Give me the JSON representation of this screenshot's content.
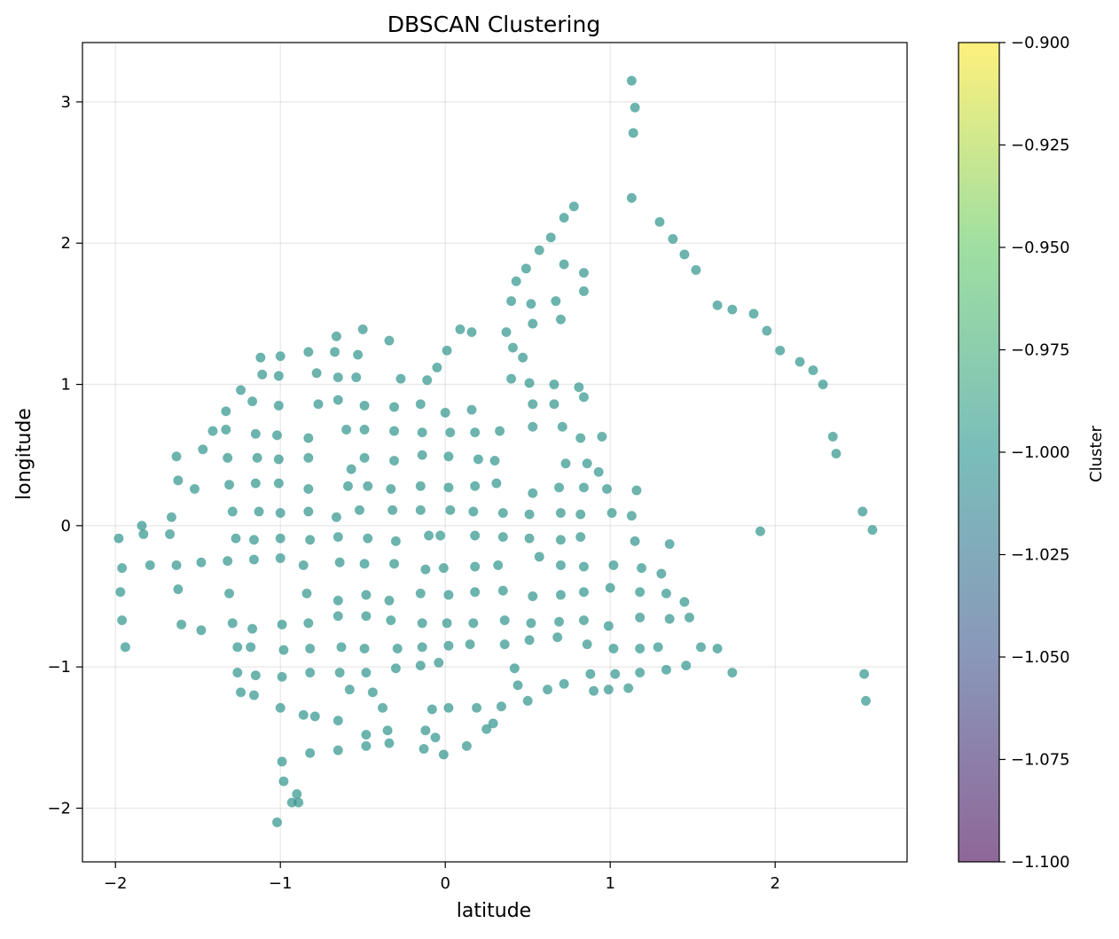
{
  "chart_data": {
    "type": "scatter",
    "title": "DBSCAN Clustering",
    "xlabel": "latitude",
    "ylabel": "longitude",
    "xlim": [
      -2.2,
      2.8
    ],
    "ylim": [
      -2.38,
      3.42
    ],
    "xticks": [
      -2,
      -1,
      0,
      1,
      2
    ],
    "xtick_labels": [
      "−2",
      "−1",
      "0",
      "1",
      "2"
    ],
    "yticks": [
      -2,
      -1,
      0,
      1,
      2,
      3
    ],
    "ytick_labels": [
      "−2",
      "−1",
      "0",
      "1",
      "2",
      "3"
    ],
    "grid": true,
    "point_color": "#35978f",
    "colorbar": {
      "label": "Cluster",
      "range": [
        -1.1,
        -0.9
      ],
      "ticks": [
        -0.9,
        -0.925,
        -0.95,
        -0.975,
        -1.0,
        -1.025,
        -1.05,
        -1.075,
        -1.1
      ],
      "tick_labels": [
        "−0.900",
        "−0.925",
        "−0.950",
        "−0.975",
        "−1.000",
        "−1.025",
        "−1.050",
        "−1.075",
        "−1.100"
      ],
      "colors": [
        "#440154",
        "#3b528b",
        "#21918c",
        "#5ec962",
        "#fde725"
      ]
    },
    "series": [
      {
        "cluster": -1,
        "points": [
          [
            1.13,
            3.15
          ],
          [
            1.15,
            2.96
          ],
          [
            1.14,
            2.78
          ],
          [
            1.13,
            2.32
          ],
          [
            0.78,
            2.26
          ],
          [
            0.72,
            2.18
          ],
          [
            0.64,
            2.04
          ],
          [
            0.57,
            1.95
          ],
          [
            0.49,
            1.82
          ],
          [
            0.43,
            1.73
          ],
          [
            0.72,
            1.85
          ],
          [
            0.84,
            1.79
          ],
          [
            0.84,
            1.66
          ],
          [
            0.67,
            1.59
          ],
          [
            0.4,
            1.59
          ],
          [
            0.52,
            1.57
          ],
          [
            0.7,
            1.46
          ],
          [
            0.53,
            1.43
          ],
          [
            0.37,
            1.37
          ],
          [
            0.41,
            1.26
          ],
          [
            0.47,
            1.19
          ],
          [
            1.3,
            2.15
          ],
          [
            1.38,
            2.03
          ],
          [
            1.45,
            1.92
          ],
          [
            1.52,
            1.81
          ],
          [
            1.65,
            1.56
          ],
          [
            1.74,
            1.53
          ],
          [
            1.87,
            1.5
          ],
          [
            1.95,
            1.38
          ],
          [
            2.03,
            1.24
          ],
          [
            2.15,
            1.16
          ],
          [
            2.23,
            1.1
          ],
          [
            2.29,
            1.0
          ],
          [
            2.35,
            0.63
          ],
          [
            2.37,
            0.51
          ],
          [
            2.53,
            0.1
          ],
          [
            2.59,
            -0.03
          ],
          [
            1.91,
            -0.04
          ],
          [
            2.54,
            -1.05
          ],
          [
            2.55,
            -1.24
          ],
          [
            0.09,
            1.39
          ],
          [
            0.16,
            1.37
          ],
          [
            0.01,
            1.24
          ],
          [
            -0.05,
            1.12
          ],
          [
            -0.11,
            1.03
          ],
          [
            -0.27,
            1.04
          ],
          [
            -0.5,
            1.39
          ],
          [
            -0.34,
            1.31
          ],
          [
            -0.66,
            1.34
          ],
          [
            -0.53,
            1.21
          ],
          [
            -0.67,
            1.23
          ],
          [
            -0.83,
            1.23
          ],
          [
            -1.0,
            1.2
          ],
          [
            -1.12,
            1.19
          ],
          [
            -1.11,
            1.07
          ],
          [
            -1.01,
            1.06
          ],
          [
            -0.78,
            1.08
          ],
          [
            -0.65,
            1.05
          ],
          [
            -0.54,
            1.05
          ],
          [
            -1.24,
            0.96
          ],
          [
            -1.17,
            0.88
          ],
          [
            -1.01,
            0.85
          ],
          [
            -0.77,
            0.86
          ],
          [
            -0.65,
            0.89
          ],
          [
            -0.49,
            0.85
          ],
          [
            -0.31,
            0.84
          ],
          [
            -0.15,
            0.86
          ],
          [
            0.0,
            0.8
          ],
          [
            0.16,
            0.82
          ],
          [
            0.4,
            1.04
          ],
          [
            0.51,
            1.01
          ],
          [
            0.66,
            1.0
          ],
          [
            0.81,
            0.98
          ],
          [
            0.84,
            0.91
          ],
          [
            0.53,
            0.86
          ],
          [
            0.66,
            0.86
          ],
          [
            -1.33,
            0.81
          ],
          [
            -1.41,
            0.67
          ],
          [
            -1.33,
            0.68
          ],
          [
            -1.15,
            0.65
          ],
          [
            -1.02,
            0.64
          ],
          [
            -0.83,
            0.62
          ],
          [
            -0.6,
            0.68
          ],
          [
            -0.49,
            0.68
          ],
          [
            -0.31,
            0.67
          ],
          [
            -0.14,
            0.66
          ],
          [
            0.03,
            0.66
          ],
          [
            0.18,
            0.66
          ],
          [
            0.33,
            0.67
          ],
          [
            0.53,
            0.7
          ],
          [
            0.71,
            0.7
          ],
          [
            0.82,
            0.62
          ],
          [
            0.95,
            0.63
          ],
          [
            -1.63,
            0.49
          ],
          [
            -1.47,
            0.54
          ],
          [
            -1.32,
            0.48
          ],
          [
            -1.14,
            0.48
          ],
          [
            -1.01,
            0.47
          ],
          [
            -0.83,
            0.48
          ],
          [
            -0.57,
            0.4
          ],
          [
            -0.49,
            0.48
          ],
          [
            -0.31,
            0.46
          ],
          [
            -0.14,
            0.5
          ],
          [
            0.02,
            0.49
          ],
          [
            0.2,
            0.47
          ],
          [
            0.3,
            0.46
          ],
          [
            0.73,
            0.44
          ],
          [
            0.86,
            0.44
          ],
          [
            0.93,
            0.38
          ],
          [
            -1.62,
            0.32
          ],
          [
            -1.52,
            0.26
          ],
          [
            -1.31,
            0.29
          ],
          [
            -1.15,
            0.3
          ],
          [
            -1.01,
            0.3
          ],
          [
            -0.83,
            0.26
          ],
          [
            -0.59,
            0.28
          ],
          [
            -0.47,
            0.28
          ],
          [
            -0.33,
            0.26
          ],
          [
            -0.15,
            0.28
          ],
          [
            0.02,
            0.27
          ],
          [
            0.18,
            0.28
          ],
          [
            0.31,
            0.3
          ],
          [
            0.53,
            0.23
          ],
          [
            0.69,
            0.27
          ],
          [
            0.84,
            0.27
          ],
          [
            0.98,
            0.26
          ],
          [
            1.16,
            0.25
          ],
          [
            -1.66,
            0.06
          ],
          [
            -1.29,
            0.1
          ],
          [
            -1.13,
            0.1
          ],
          [
            -1.0,
            0.09
          ],
          [
            -0.83,
            0.1
          ],
          [
            -0.66,
            0.06
          ],
          [
            -0.52,
            0.11
          ],
          [
            -0.32,
            0.11
          ],
          [
            -0.15,
            0.11
          ],
          [
            0.03,
            0.11
          ],
          [
            0.17,
            0.1
          ],
          [
            0.35,
            0.09
          ],
          [
            0.51,
            0.08
          ],
          [
            0.7,
            0.09
          ],
          [
            0.82,
            0.08
          ],
          [
            1.01,
            0.09
          ],
          [
            1.13,
            0.07
          ],
          [
            -1.84,
            0.0
          ],
          [
            -1.98,
            -0.09
          ],
          [
            -1.83,
            -0.06
          ],
          [
            -1.67,
            -0.06
          ],
          [
            -1.27,
            -0.09
          ],
          [
            -1.16,
            -0.1
          ],
          [
            -1.0,
            -0.09
          ],
          [
            -0.82,
            -0.1
          ],
          [
            -0.65,
            -0.08
          ],
          [
            -0.47,
            -0.09
          ],
          [
            -0.3,
            -0.11
          ],
          [
            -0.1,
            -0.07
          ],
          [
            -0.03,
            -0.07
          ],
          [
            0.18,
            -0.07
          ],
          [
            0.35,
            -0.08
          ],
          [
            0.51,
            -0.09
          ],
          [
            0.7,
            -0.1
          ],
          [
            0.82,
            -0.08
          ],
          [
            1.15,
            -0.11
          ],
          [
            1.36,
            -0.13
          ],
          [
            -1.96,
            -0.3
          ],
          [
            -1.79,
            -0.28
          ],
          [
            -1.63,
            -0.28
          ],
          [
            -1.48,
            -0.26
          ],
          [
            -1.32,
            -0.25
          ],
          [
            -1.16,
            -0.24
          ],
          [
            -1.0,
            -0.23
          ],
          [
            -0.86,
            -0.28
          ],
          [
            -0.64,
            -0.26
          ],
          [
            -0.49,
            -0.27
          ],
          [
            -0.31,
            -0.27
          ],
          [
            -0.12,
            -0.31
          ],
          [
            -0.01,
            -0.3
          ],
          [
            0.18,
            -0.29
          ],
          [
            0.32,
            -0.28
          ],
          [
            0.57,
            -0.22
          ],
          [
            0.7,
            -0.28
          ],
          [
            0.84,
            -0.29
          ],
          [
            1.02,
            -0.28
          ],
          [
            1.19,
            -0.3
          ],
          [
            1.31,
            -0.34
          ],
          [
            -1.97,
            -0.47
          ],
          [
            -1.62,
            -0.45
          ],
          [
            -1.31,
            -0.48
          ],
          [
            -0.84,
            -0.48
          ],
          [
            -0.65,
            -0.53
          ],
          [
            -0.48,
            -0.49
          ],
          [
            -0.34,
            -0.53
          ],
          [
            -0.15,
            -0.48
          ],
          [
            0.02,
            -0.49
          ],
          [
            0.18,
            -0.47
          ],
          [
            0.35,
            -0.46
          ],
          [
            0.53,
            -0.5
          ],
          [
            0.7,
            -0.49
          ],
          [
            0.84,
            -0.47
          ],
          [
            1.0,
            -0.44
          ],
          [
            1.18,
            -0.47
          ],
          [
            1.34,
            -0.48
          ],
          [
            1.45,
            -0.54
          ],
          [
            -1.96,
            -0.67
          ],
          [
            -1.6,
            -0.7
          ],
          [
            -1.48,
            -0.74
          ],
          [
            -1.29,
            -0.69
          ],
          [
            -1.17,
            -0.73
          ],
          [
            -0.99,
            -0.7
          ],
          [
            -0.83,
            -0.69
          ],
          [
            -0.65,
            -0.64
          ],
          [
            -0.48,
            -0.64
          ],
          [
            -0.33,
            -0.67
          ],
          [
            -0.14,
            -0.69
          ],
          [
            0.01,
            -0.69
          ],
          [
            0.17,
            -0.69
          ],
          [
            0.36,
            -0.67
          ],
          [
            0.52,
            -0.69
          ],
          [
            0.69,
            -0.68
          ],
          [
            0.84,
            -0.67
          ],
          [
            0.99,
            -0.71
          ],
          [
            1.18,
            -0.65
          ],
          [
            1.36,
            -0.66
          ],
          [
            1.48,
            -0.65
          ],
          [
            -1.94,
            -0.86
          ],
          [
            -1.26,
            -0.86
          ],
          [
            -1.18,
            -0.86
          ],
          [
            -0.98,
            -0.88
          ],
          [
            -0.82,
            -0.87
          ],
          [
            -0.63,
            -0.86
          ],
          [
            -0.49,
            -0.87
          ],
          [
            -0.29,
            -0.87
          ],
          [
            -0.14,
            -0.86
          ],
          [
            0.02,
            -0.85
          ],
          [
            0.15,
            -0.84
          ],
          [
            0.36,
            -0.84
          ],
          [
            0.51,
            -0.81
          ],
          [
            0.68,
            -0.79
          ],
          [
            0.86,
            -0.84
          ],
          [
            1.02,
            -0.87
          ],
          [
            1.18,
            -0.87
          ],
          [
            1.29,
            -0.86
          ],
          [
            1.55,
            -0.86
          ],
          [
            1.65,
            -0.87
          ],
          [
            -1.26,
            -1.04
          ],
          [
            -1.15,
            -1.06
          ],
          [
            -0.99,
            -1.07
          ],
          [
            -0.82,
            -1.04
          ],
          [
            -0.64,
            -1.04
          ],
          [
            -0.48,
            -1.04
          ],
          [
            -0.3,
            -1.01
          ],
          [
            -0.15,
            -0.99
          ],
          [
            -0.04,
            -0.97
          ],
          [
            0.42,
            -1.01
          ],
          [
            0.44,
            -1.13
          ],
          [
            0.88,
            -1.05
          ],
          [
            1.03,
            -1.05
          ],
          [
            1.18,
            -1.04
          ],
          [
            1.34,
            -1.02
          ],
          [
            1.46,
            -0.99
          ],
          [
            1.74,
            -1.04
          ],
          [
            -1.24,
            -1.18
          ],
          [
            -1.16,
            -1.2
          ],
          [
            -0.58,
            -1.16
          ],
          [
            -0.44,
            -1.18
          ],
          [
            0.5,
            -1.24
          ],
          [
            0.62,
            -1.16
          ],
          [
            0.72,
            -1.12
          ],
          [
            0.9,
            -1.17
          ],
          [
            0.99,
            -1.16
          ],
          [
            1.11,
            -1.15
          ],
          [
            -1.0,
            -1.29
          ],
          [
            -0.86,
            -1.34
          ],
          [
            -0.79,
            -1.35
          ],
          [
            -0.65,
            -1.38
          ],
          [
            -0.38,
            -1.29
          ],
          [
            -0.48,
            -1.48
          ],
          [
            -0.35,
            -1.45
          ],
          [
            -0.12,
            -1.45
          ],
          [
            -0.08,
            -1.3
          ],
          [
            0.02,
            -1.29
          ],
          [
            0.19,
            -1.29
          ],
          [
            0.34,
            -1.28
          ],
          [
            0.29,
            -1.4
          ],
          [
            0.25,
            -1.44
          ],
          [
            -0.06,
            -1.5
          ],
          [
            -0.82,
            -1.61
          ],
          [
            -0.65,
            -1.59
          ],
          [
            -0.48,
            -1.56
          ],
          [
            -0.34,
            -1.54
          ],
          [
            -0.13,
            -1.58
          ],
          [
            -0.01,
            -1.62
          ],
          [
            0.13,
            -1.56
          ],
          [
            -0.99,
            -1.67
          ],
          [
            -0.98,
            -1.81
          ],
          [
            -0.9,
            -1.9
          ],
          [
            -0.93,
            -1.96
          ],
          [
            -0.89,
            -1.96
          ],
          [
            -1.02,
            -2.1
          ]
        ]
      }
    ]
  }
}
